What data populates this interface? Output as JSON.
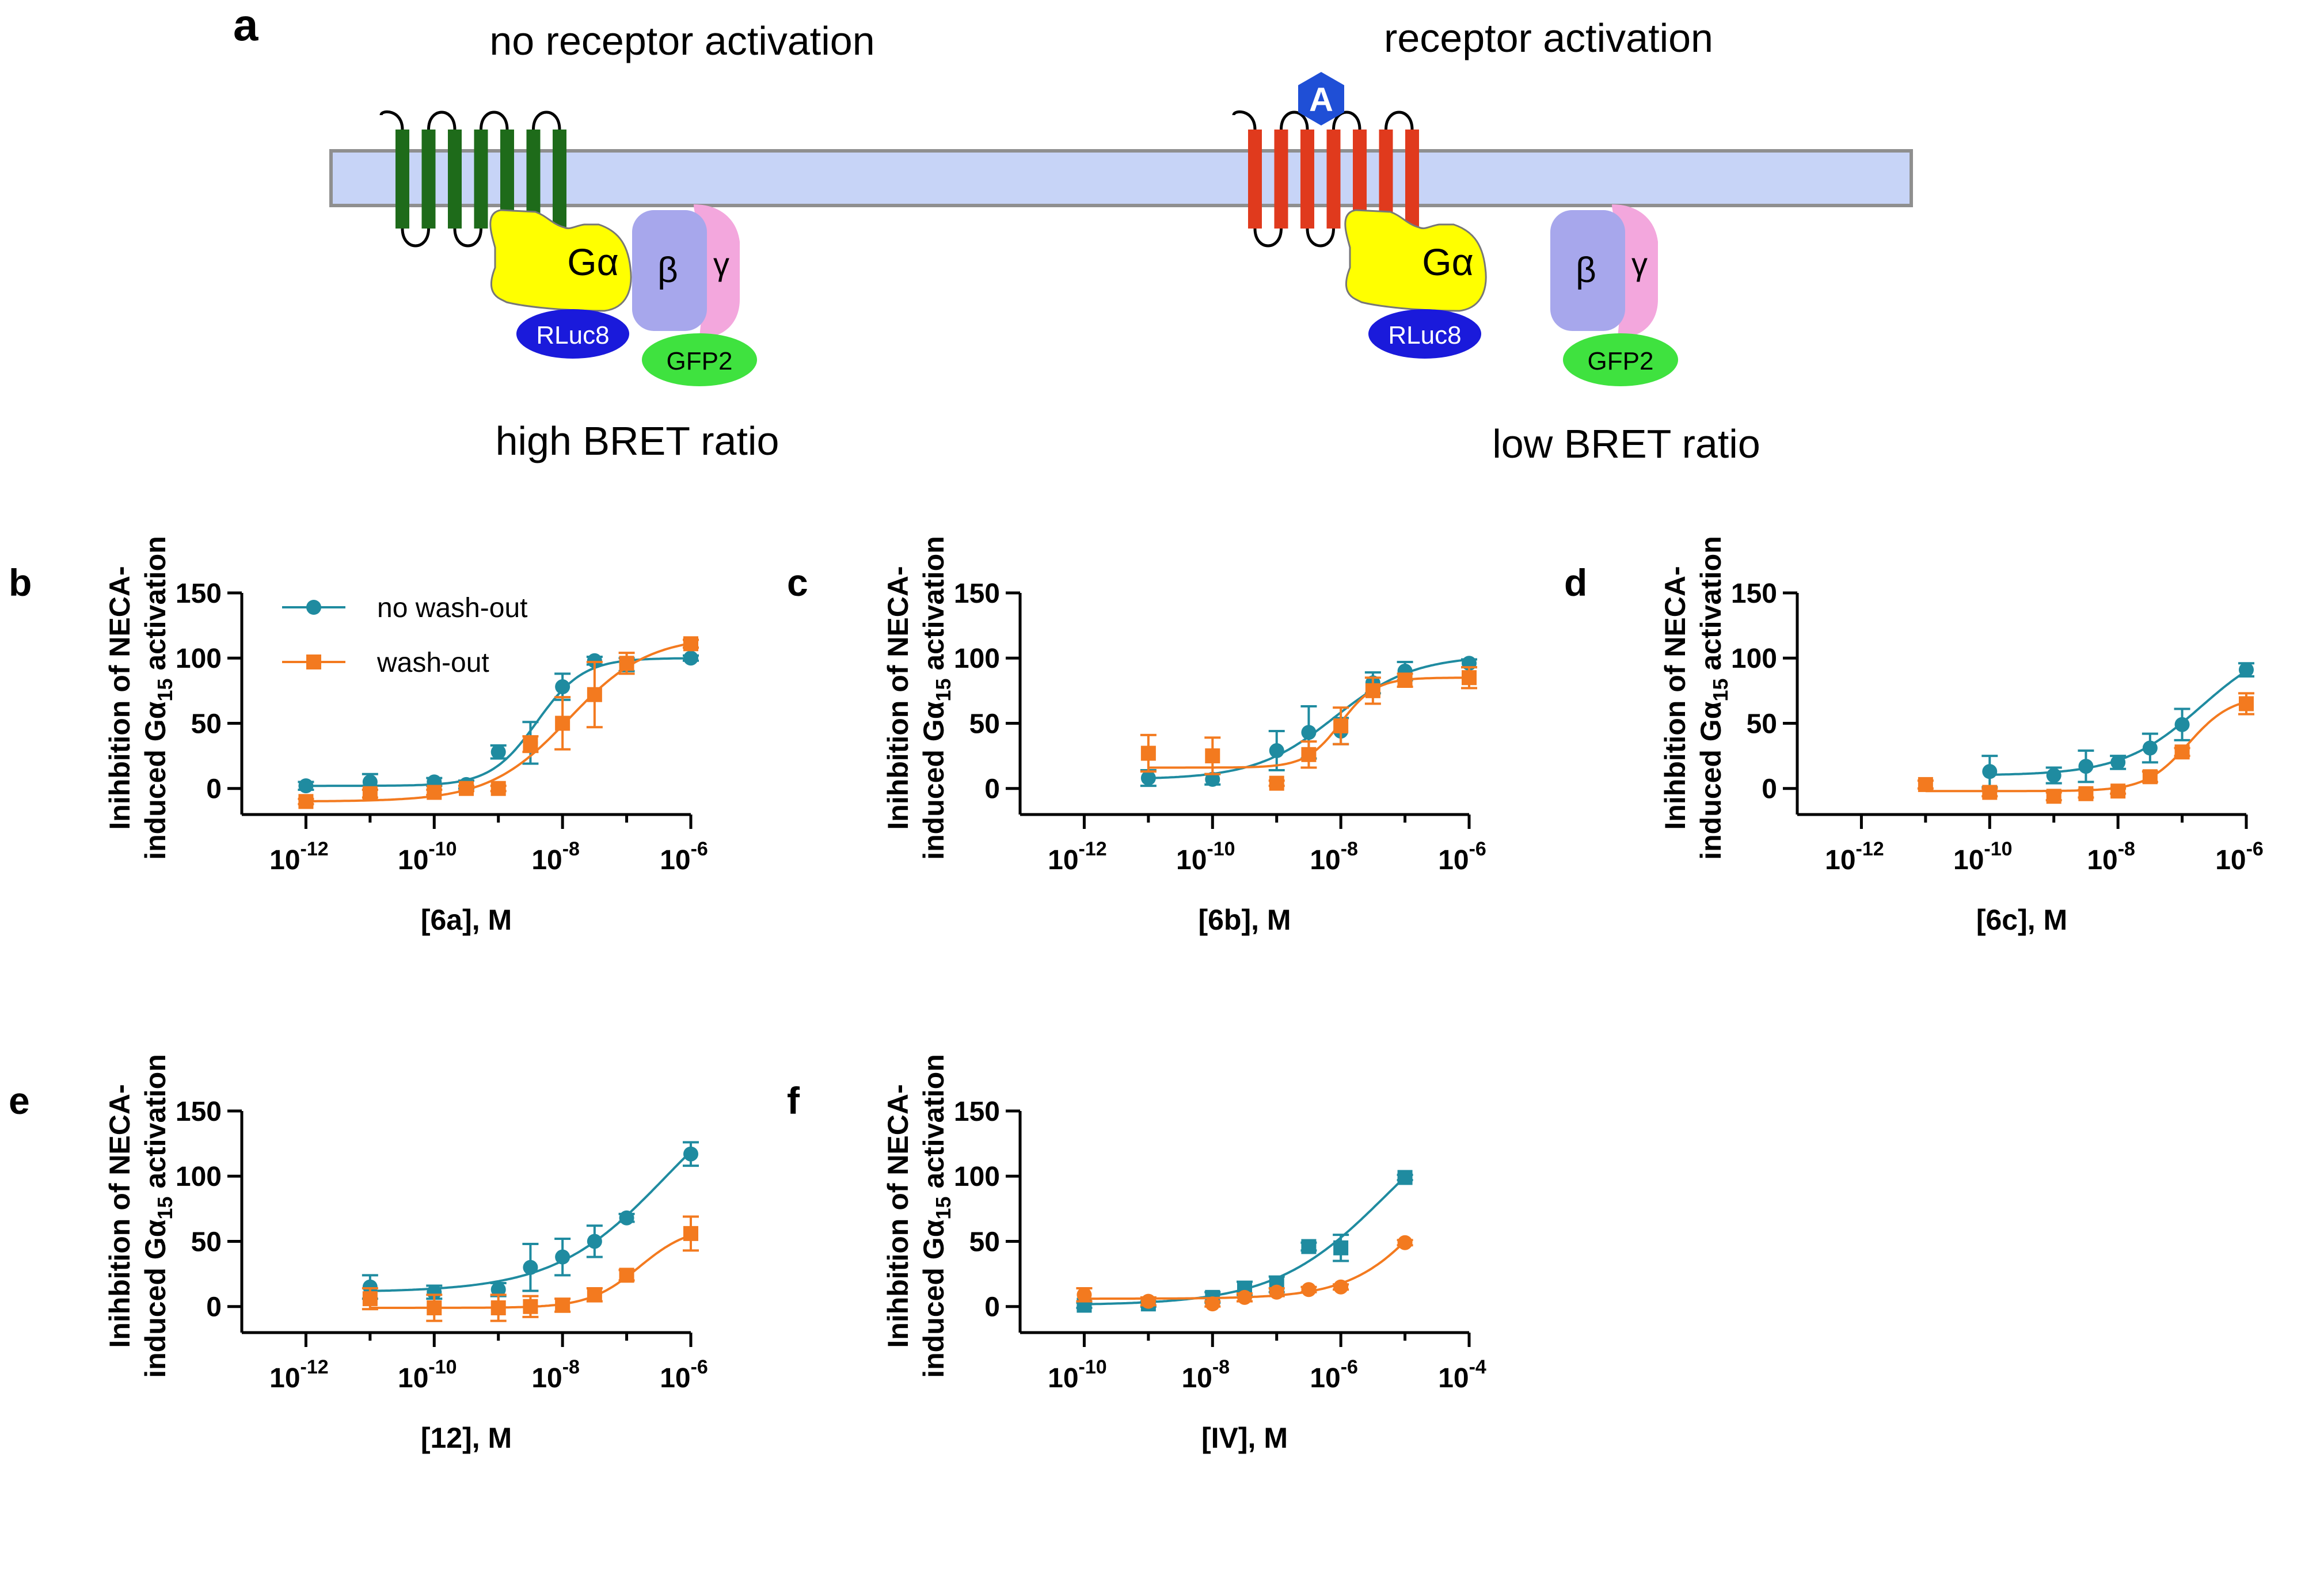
{
  "figure_colors": {
    "no_washout": "#1f8ba0",
    "washout": "#f37a1f",
    "membrane": "#c7d4f7",
    "membrane_edge": "#8f8f8f",
    "receptor_inactive": "#1e6b1a",
    "receptor_active": "#e03a1d",
    "galpha": "#ffff00",
    "beta": "#a7a7ec",
    "gamma": "#f3a7dd",
    "rluc8": "#1a1adb",
    "gfp2": "#3fe23f",
    "agonist": "#1f4fd6"
  },
  "schematic": {
    "panel_letter": "a",
    "left_title": "no receptor activation",
    "right_title": "receptor activation",
    "agonist_label": "A",
    "galpha_label": "Gα",
    "beta_label": "β",
    "gamma_label": "γ",
    "rluc8_label": "RLuc8",
    "gfp2_label": "GFP2",
    "left_caption": "high BRET ratio",
    "right_caption": "low BRET ratio"
  },
  "y_axis_line1": "Inihbition of NECA-",
  "y_axis_line2_pre": "induced Gα",
  "y_axis_line2_sub": "15",
  "y_axis_line2_post": " activation",
  "legend": {
    "no_washout": "no wash-out",
    "washout": "wash-out"
  },
  "chart_data": [
    {
      "panel": "b",
      "type": "scatter",
      "xlabel": "[6a], M",
      "xscale": "log",
      "xlim_exp": [
        -13,
        -6
      ],
      "ylim": [
        -20,
        150
      ],
      "xticks_exp": [
        "-12",
        "-10",
        "-8",
        "-6"
      ],
      "yticks": [
        0,
        50,
        100,
        150
      ],
      "legend_position": "top-left",
      "series": [
        {
          "name": "no wash-out",
          "marker": "circle",
          "x_exp": [
            -12,
            -11,
            -10,
            -9.5,
            -9,
            -8.5,
            -8,
            -7.5,
            -7,
            -6
          ],
          "values": [
            2,
            5,
            5,
            3,
            28,
            35,
            78,
            98,
            95,
            100
          ],
          "errors": [
            3,
            6,
            3,
            3,
            5,
            16,
            10,
            3,
            5,
            2
          ]
        },
        {
          "name": "wash-out",
          "marker": "square",
          "x_exp": [
            -12,
            -11,
            -10,
            -9.5,
            -9,
            -8.5,
            -8,
            -7.5,
            -7,
            -6
          ],
          "values": [
            -10,
            -4,
            -3,
            0,
            0,
            34,
            50,
            72,
            96,
            111
          ],
          "errors": [
            2,
            3,
            2,
            2,
            2,
            6,
            20,
            25,
            8,
            3
          ]
        }
      ]
    },
    {
      "panel": "c",
      "type": "scatter",
      "xlabel": "[6b], M",
      "xscale": "log",
      "xlim_exp": [
        -13,
        -6
      ],
      "ylim": [
        -20,
        150
      ],
      "xticks_exp": [
        "-12",
        "-10",
        "-8",
        "-6"
      ],
      "yticks": [
        0,
        50,
        100,
        150
      ],
      "series": [
        {
          "name": "no wash-out",
          "marker": "circle",
          "x_exp": [
            -11,
            -10,
            -9,
            -8.5,
            -8,
            -7.5,
            -7,
            -6
          ],
          "values": [
            8,
            7,
            29,
            43,
            44,
            81,
            90,
            96
          ],
          "errors": [
            6,
            4,
            15,
            20,
            10,
            8,
            7,
            3
          ]
        },
        {
          "name": "wash-out",
          "marker": "square",
          "x_exp": [
            -11,
            -10,
            -9,
            -8.5,
            -8,
            -7.5,
            -7,
            -6
          ],
          "values": [
            27,
            25,
            4,
            26,
            48,
            75,
            83,
            85
          ],
          "errors": [
            14,
            14,
            2,
            10,
            14,
            10,
            5,
            8
          ]
        }
      ]
    },
    {
      "panel": "d",
      "type": "scatter",
      "xlabel": "[6c], M",
      "xscale": "log",
      "xlim_exp": [
        -13,
        -6
      ],
      "ylim": [
        -20,
        150
      ],
      "xticks_exp": [
        "-12",
        "-10",
        "-8",
        "-6"
      ],
      "yticks": [
        0,
        50,
        100,
        150
      ],
      "series": [
        {
          "name": "no wash-out",
          "marker": "circle",
          "x_exp": [
            -10,
            -9,
            -8.5,
            -8,
            -7.5,
            -7,
            -6
          ],
          "values": [
            13,
            10,
            17,
            20,
            31,
            49,
            91
          ],
          "errors": [
            12,
            6,
            12,
            5,
            11,
            12,
            5
          ]
        },
        {
          "name": "wash-out",
          "marker": "square",
          "x_exp": [
            -11,
            -10,
            -9,
            -8.5,
            -8,
            -7.5,
            -7,
            -6
          ],
          "values": [
            3,
            -3,
            -6,
            -4,
            -2,
            9,
            28,
            65
          ],
          "errors": [
            3,
            3,
            3,
            3,
            2,
            4,
            3,
            8
          ]
        }
      ]
    },
    {
      "panel": "e",
      "type": "scatter",
      "xlabel": "[12], M",
      "xscale": "log",
      "xlim_exp": [
        -13,
        -6
      ],
      "ylim": [
        -20,
        150
      ],
      "xticks_exp": [
        "-12",
        "-10",
        "-8",
        "-6"
      ],
      "yticks": [
        0,
        50,
        100,
        150
      ],
      "series": [
        {
          "name": "no wash-out",
          "marker": "circle",
          "x_exp": [
            -11,
            -10,
            -9,
            -8.5,
            -8,
            -7.5,
            -7,
            -6
          ],
          "values": [
            15,
            11,
            13,
            30,
            38,
            50,
            68,
            117
          ],
          "errors": [
            9,
            5,
            5,
            18,
            14,
            12,
            3,
            9
          ]
        },
        {
          "name": "wash-out",
          "marker": "square",
          "x_exp": [
            -11,
            -10,
            -9,
            -8.5,
            -8,
            -7.5,
            -7,
            -6
          ],
          "values": [
            6,
            -1,
            -1,
            0,
            1,
            9,
            24,
            56
          ],
          "errors": [
            8,
            10,
            10,
            8,
            5,
            5,
            4,
            13
          ]
        }
      ]
    },
    {
      "panel": "f",
      "type": "scatter",
      "xlabel": "[IV], M",
      "xscale": "log",
      "xlim_exp": [
        -11,
        -4
      ],
      "ylim": [
        -20,
        150
      ],
      "xticks_exp": [
        "-10",
        "-8",
        "-6",
        "-4"
      ],
      "yticks": [
        0,
        50,
        100,
        150
      ],
      "series": [
        {
          "name": "no wash-out",
          "marker": "square",
          "x_exp": [
            -10,
            -9,
            -8,
            -7.5,
            -7,
            -6.5,
            -6,
            -5
          ],
          "values": [
            1,
            2,
            7,
            14,
            17,
            46,
            45,
            99
          ],
          "errors": [
            2,
            2,
            4,
            5,
            6,
            3,
            10,
            2
          ]
        },
        {
          "name": "wash-out",
          "marker": "circle",
          "x_exp": [
            -10,
            -9,
            -8,
            -7.5,
            -7,
            -6.5,
            -6,
            -5
          ],
          "values": [
            9,
            4,
            2,
            7,
            11,
            13,
            15,
            49
          ],
          "errors": [
            5,
            3,
            2,
            3,
            3,
            2,
            2,
            2
          ]
        }
      ]
    }
  ]
}
